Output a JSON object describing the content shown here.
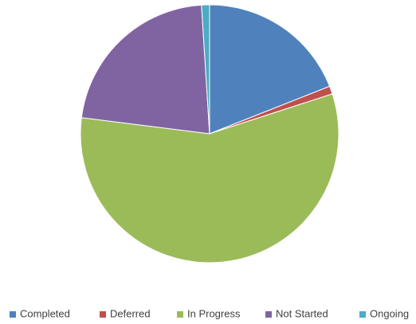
{
  "chart_data": {
    "type": "pie",
    "categories": [
      "Completed",
      "Deferred",
      "In Progress",
      "Not Started",
      "Ongoing"
    ],
    "values": [
      19,
      1,
      57,
      22,
      1
    ],
    "colors": [
      "#4f81bd",
      "#c0504d",
      "#9bbb59",
      "#8064a2",
      "#4bacc6"
    ],
    "legend": "bottom"
  }
}
